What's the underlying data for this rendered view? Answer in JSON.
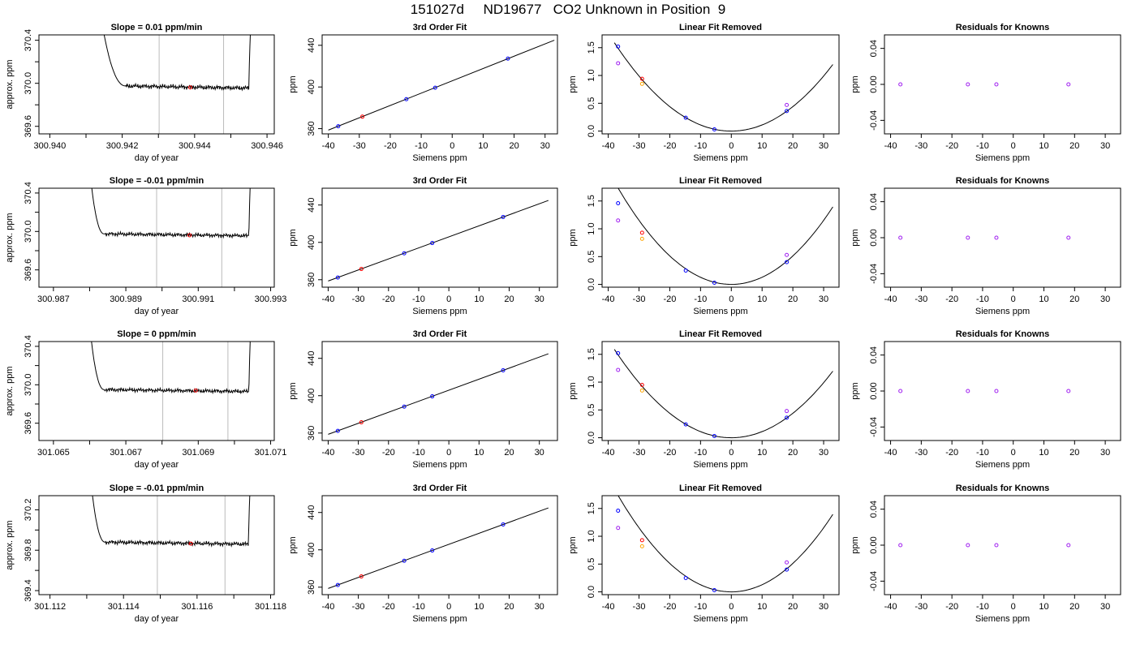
{
  "figure_title": "151027d     ND19677   CO2 Unknown in Position  9",
  "colors": {
    "trace": "#000000",
    "gridline": "#bbbbbb",
    "unknown_point": "#ff0000",
    "known_point": "#0000ff",
    "measured_point": "#a020f0",
    "secondary_point": "#ffa500",
    "fit_line": "#000000"
  },
  "chart_data": [
    {
      "type": "line",
      "title": "Slope =  0.01  ppm/min",
      "xlabel": "day of year",
      "ylabel": "approx. ppm",
      "xlim": [
        300.9397,
        300.9462
      ],
      "ylim": [
        369.53,
        370.45
      ],
      "xticks": [
        "300.940",
        "300.942",
        "300.944",
        "300.946"
      ],
      "xtick_values": [
        300.94,
        300.942,
        300.944,
        300.946
      ],
      "yticks": [
        "369.6",
        "370.0",
        "370.4"
      ],
      "ytick_values": [
        369.6,
        370.0,
        370.4
      ],
      "baseline": 369.975,
      "plateau_start": 300.9421,
      "plateau_end": 300.9455,
      "trace_start": 300.9411,
      "vlines": [
        300.94302,
        300.9448
      ],
      "unknown_point": {
        "x": 300.94388,
        "y": 369.962
      }
    },
    {
      "type": "line",
      "title": "3rd Order Fit",
      "xlabel": "Siemens ppm",
      "ylabel": "ppm",
      "xlim": [
        -42,
        34
      ],
      "ylim": [
        355,
        450
      ],
      "xticks": [
        "-40",
        "-30",
        "-20",
        "-10",
        "0",
        "10",
        "20",
        "30"
      ],
      "xtick_values": [
        -40,
        -30,
        -20,
        -10,
        0,
        10,
        20,
        30
      ],
      "yticks": [
        "360",
        "400",
        "440"
      ],
      "ytick_values": [
        360,
        400,
        440
      ],
      "fit_x": [
        -40,
        33
      ],
      "fit_y": [
        358.6,
        444.9
      ],
      "known_points": {
        "x": [
          -36.8,
          -14.8,
          -5.5,
          18.0
        ],
        "y": [
          362.3,
          388.3,
          399.3,
          427.2
        ]
      },
      "unknown_point": {
        "x": -29.0,
        "y": 371.5
      }
    },
    {
      "type": "line",
      "title": "Linear Fit Removed",
      "xlabel": "Siemens ppm",
      "ylabel": "ppm",
      "xlim": [
        -42,
        35
      ],
      "ylim": [
        -0.05,
        1.73
      ],
      "xticks": [
        "-40",
        "-30",
        "-20",
        "-10",
        "0",
        "10",
        "20",
        "30"
      ],
      "xtick_values": [
        -40,
        -30,
        -20,
        -10,
        0,
        10,
        20,
        30
      ],
      "yticks": [
        "0.0",
        "0.5",
        "1.0",
        "1.5"
      ],
      "ytick_values": [
        0,
        0.5,
        1.0,
        1.5
      ],
      "curve_coeffs": [
        0.0011,
        0.0
      ],
      "curve_xrange": [
        -38,
        33
      ],
      "known_points": {
        "x": [
          -36.8,
          -14.8,
          -5.5,
          18.0
        ],
        "y": [
          1.52,
          0.24,
          0.03,
          0.36
        ]
      },
      "measured_points": {
        "x": [
          -36.8,
          18.0
        ],
        "y": [
          1.22,
          0.47
        ]
      },
      "secondary_point": {
        "x": -29.0,
        "y": 0.85
      },
      "unknown_point": {
        "x": -29.0,
        "y": 0.94
      }
    },
    {
      "type": "scatter",
      "title": "Residuals for Knowns",
      "xlabel": "Siemens ppm",
      "ylabel": "ppm",
      "xlim": [
        -42,
        35
      ],
      "ylim": [
        -0.055,
        0.055
      ],
      "xticks": [
        "-40",
        "-30",
        "-20",
        "-10",
        "0",
        "10",
        "20",
        "30"
      ],
      "xtick_values": [
        -40,
        -30,
        -20,
        -10,
        0,
        10,
        20,
        30
      ],
      "yticks": [
        "-0.04",
        "0.00",
        "0.04"
      ],
      "ytick_values": [
        -0.04,
        0,
        0.04
      ],
      "points": {
        "x": [
          -36.8,
          -14.8,
          -5.5,
          18.0
        ],
        "y": [
          0,
          0,
          0,
          0
        ]
      }
    },
    {
      "type": "line",
      "title": "Slope =  -0.01  ppm/min",
      "xlabel": "day of year",
      "ylabel": "approx. ppm",
      "xlim": [
        300.9866,
        300.9931
      ],
      "ylim": [
        369.42,
        370.45
      ],
      "xticks": [
        "300.987",
        "300.989",
        "300.991",
        "300.993"
      ],
      "xtick_values": [
        300.987,
        300.989,
        300.991,
        300.993
      ],
      "yticks": [
        "369.6",
        "370.0",
        "370.4"
      ],
      "ytick_values": [
        369.6,
        370.0,
        370.4
      ],
      "baseline": 369.975,
      "plateau_start": 300.9884,
      "plateau_end": 300.9924,
      "trace_start": 300.9878,
      "vlines": [
        300.98985,
        300.99165
      ],
      "unknown_point": {
        "x": 300.99076,
        "y": 369.96
      }
    },
    {
      "type": "line",
      "title": "3rd Order Fit",
      "xlabel": "Siemens ppm",
      "ylabel": "ppm",
      "xlim": [
        -42,
        36
      ],
      "ylim": [
        352,
        458
      ],
      "xticks": [
        "-40",
        "-30",
        "-20",
        "-10",
        "0",
        "10",
        "20",
        "30"
      ],
      "xtick_values": [
        -40,
        -30,
        -20,
        -10,
        0,
        10,
        20,
        30
      ],
      "yticks": [
        "360",
        "400",
        "440"
      ],
      "ytick_values": [
        360,
        400,
        440
      ],
      "fit_x": [
        -40,
        33
      ],
      "fit_y": [
        358.6,
        444.9
      ],
      "known_points": {
        "x": [
          -36.8,
          -14.8,
          -5.5,
          18.0
        ],
        "y": [
          362.3,
          388.3,
          399.3,
          427.2
        ]
      },
      "unknown_point": {
        "x": -29.0,
        "y": 371.5
      }
    },
    {
      "type": "line",
      "title": "Linear Fit Removed",
      "xlabel": "Siemens ppm",
      "ylabel": "ppm",
      "xlim": [
        -42,
        35
      ],
      "ylim": [
        -0.05,
        1.73
      ],
      "xticks": [
        "-40",
        "-30",
        "-20",
        "-10",
        "0",
        "10",
        "20",
        "30"
      ],
      "xtick_values": [
        -40,
        -30,
        -20,
        -10,
        0,
        10,
        20,
        30
      ],
      "yticks": [
        "0.0",
        "0.5",
        "1.0",
        "1.5"
      ],
      "ytick_values": [
        0,
        0.5,
        1.0,
        1.5
      ],
      "curve_coeffs": [
        0.00128,
        0.0
      ],
      "curve_xrange": [
        -38,
        33
      ],
      "known_points": {
        "x": [
          -36.8,
          -14.8,
          -5.5,
          18.0
        ],
        "y": [
          1.46,
          0.25,
          0.03,
          0.4
        ]
      },
      "measured_points": {
        "x": [
          -36.8,
          18.0
        ],
        "y": [
          1.15,
          0.53
        ]
      },
      "secondary_point": {
        "x": -29.0,
        "y": 0.82
      },
      "unknown_point": {
        "x": -29.0,
        "y": 0.93
      }
    },
    {
      "type": "scatter",
      "title": "Residuals for Knowns",
      "xlabel": "Siemens ppm",
      "ylabel": "ppm",
      "xlim": [
        -42,
        35
      ],
      "ylim": [
        -0.055,
        0.055
      ],
      "xticks": [
        "-40",
        "-30",
        "-20",
        "-10",
        "0",
        "10",
        "20",
        "30"
      ],
      "xtick_values": [
        -40,
        -30,
        -20,
        -10,
        0,
        10,
        20,
        30
      ],
      "yticks": [
        "-0.04",
        "0.00",
        "0.04"
      ],
      "ytick_values": [
        -0.04,
        0,
        0.04
      ],
      "points": {
        "x": [
          -36.8,
          -14.8,
          -5.5,
          18.0
        ],
        "y": [
          0,
          0,
          0,
          0
        ]
      }
    },
    {
      "type": "line",
      "title": "Slope =  0  ppm/min",
      "xlabel": "day of year",
      "ylabel": "approx. ppm",
      "xlim": [
        301.0646,
        301.0711
      ],
      "ylim": [
        369.42,
        370.45
      ],
      "xticks": [
        "301.065",
        "301.067",
        "301.069",
        "301.071"
      ],
      "xtick_values": [
        301.065,
        301.067,
        301.069,
        301.071
      ],
      "yticks": [
        "369.6",
        "370.0",
        "370.4"
      ],
      "ytick_values": [
        369.6,
        370.0,
        370.4
      ],
      "baseline": 369.95,
      "plateau_start": 301.0664,
      "plateau_end": 301.0704,
      "trace_start": 301.0658,
      "vlines": [
        301.06802,
        301.06982
      ],
      "unknown_point": {
        "x": 301.06893,
        "y": 369.94
      }
    },
    {
      "type": "line",
      "title": "3rd Order Fit",
      "xlabel": "Siemens ppm",
      "ylabel": "ppm",
      "xlim": [
        -42,
        36
      ],
      "ylim": [
        352,
        458
      ],
      "xticks": [
        "-40",
        "-30",
        "-20",
        "-10",
        "0",
        "10",
        "20",
        "30"
      ],
      "xtick_values": [
        -40,
        -30,
        -20,
        -10,
        0,
        10,
        20,
        30
      ],
      "yticks": [
        "360",
        "400",
        "440"
      ],
      "ytick_values": [
        360,
        400,
        440
      ],
      "fit_x": [
        -40,
        33
      ],
      "fit_y": [
        358.6,
        444.9
      ],
      "known_points": {
        "x": [
          -36.8,
          -14.8,
          -5.5,
          18.0
        ],
        "y": [
          362.3,
          388.3,
          399.3,
          427.2
        ]
      },
      "unknown_point": {
        "x": -29.0,
        "y": 371.5
      }
    },
    {
      "type": "line",
      "title": "Linear Fit Removed",
      "xlabel": "Siemens ppm",
      "ylabel": "ppm",
      "xlim": [
        -42,
        35
      ],
      "ylim": [
        -0.05,
        1.73
      ],
      "xticks": [
        "-40",
        "-30",
        "-20",
        "-10",
        "0",
        "10",
        "20",
        "30"
      ],
      "xtick_values": [
        -40,
        -30,
        -20,
        -10,
        0,
        10,
        20,
        30
      ],
      "yticks": [
        "0.0",
        "0.5",
        "1.0",
        "1.5"
      ],
      "ytick_values": [
        0,
        0.5,
        1.0,
        1.5
      ],
      "curve_coeffs": [
        0.0011,
        0.0
      ],
      "curve_xrange": [
        -38,
        33
      ],
      "known_points": {
        "x": [
          -36.8,
          -14.8,
          -5.5,
          18.0
        ],
        "y": [
          1.52,
          0.24,
          0.03,
          0.36
        ]
      },
      "measured_points": {
        "x": [
          -36.8,
          18.0
        ],
        "y": [
          1.22,
          0.48
        ]
      },
      "secondary_point": {
        "x": -29.0,
        "y": 0.85
      },
      "unknown_point": {
        "x": -29.0,
        "y": 0.95
      }
    },
    {
      "type": "scatter",
      "title": "Residuals for Knowns",
      "xlabel": "Siemens ppm",
      "ylabel": "ppm",
      "xlim": [
        -42,
        35
      ],
      "ylim": [
        -0.055,
        0.055
      ],
      "xticks": [
        "-40",
        "-30",
        "-20",
        "-10",
        "0",
        "10",
        "20",
        "30"
      ],
      "xtick_values": [
        -40,
        -30,
        -20,
        -10,
        0,
        10,
        20,
        30
      ],
      "yticks": [
        "-0.04",
        "0.00",
        "0.04"
      ],
      "ytick_values": [
        -0.04,
        0,
        0.04
      ],
      "points": {
        "x": [
          -36.8,
          -14.8,
          -5.5,
          18.0
        ],
        "y": [
          0,
          0,
          0,
          0
        ]
      }
    },
    {
      "type": "line",
      "title": "Slope =  -0.01  ppm/min",
      "xlabel": "day of year",
      "ylabel": "approx. ppm",
      "xlim": [
        301.1117,
        301.1181
      ],
      "ylim": [
        369.36,
        370.34
      ],
      "xticks": [
        "301.112",
        "301.114",
        "301.116",
        "301.118"
      ],
      "xtick_values": [
        301.112,
        301.114,
        301.116,
        301.118
      ],
      "yticks": [
        "369.4",
        "369.8",
        "370.2"
      ],
      "ytick_values": [
        369.4,
        369.8,
        370.2
      ],
      "baseline": 369.88,
      "plateau_start": 301.1135,
      "plateau_end": 301.1174,
      "trace_start": 301.1129,
      "vlines": [
        301.11492,
        301.11676
      ],
      "unknown_point": {
        "x": 301.11583,
        "y": 369.865
      }
    },
    {
      "type": "line",
      "title": "3rd Order Fit",
      "xlabel": "Siemens ppm",
      "ylabel": "ppm",
      "xlim": [
        -42,
        36
      ],
      "ylim": [
        352,
        458
      ],
      "xticks": [
        "-40",
        "-30",
        "-20",
        "-10",
        "0",
        "10",
        "20",
        "30"
      ],
      "xtick_values": [
        -40,
        -30,
        -20,
        -10,
        0,
        10,
        20,
        30
      ],
      "yticks": [
        "360",
        "400",
        "440"
      ],
      "ytick_values": [
        360,
        400,
        440
      ],
      "fit_x": [
        -40,
        33
      ],
      "fit_y": [
        358.6,
        444.9
      ],
      "known_points": {
        "x": [
          -36.8,
          -14.8,
          -5.5,
          18.0
        ],
        "y": [
          362.3,
          388.3,
          399.3,
          427.2
        ]
      },
      "unknown_point": {
        "x": -29.0,
        "y": 371.5
      }
    },
    {
      "type": "line",
      "title": "Linear Fit Removed",
      "xlabel": "Siemens ppm",
      "ylabel": "ppm",
      "xlim": [
        -42,
        35
      ],
      "ylim": [
        -0.05,
        1.73
      ],
      "xticks": [
        "-40",
        "-30",
        "-20",
        "-10",
        "0",
        "10",
        "20",
        "30"
      ],
      "xtick_values": [
        -40,
        -30,
        -20,
        -10,
        0,
        10,
        20,
        30
      ],
      "yticks": [
        "0.0",
        "0.5",
        "1.0",
        "1.5"
      ],
      "ytick_values": [
        0,
        0.5,
        1.0,
        1.5
      ],
      "curve_coeffs": [
        0.00128,
        0.0
      ],
      "curve_xrange": [
        -38,
        33
      ],
      "known_points": {
        "x": [
          -36.8,
          -14.8,
          -5.5,
          18.0
        ],
        "y": [
          1.46,
          0.25,
          0.03,
          0.4
        ]
      },
      "measured_points": {
        "x": [
          -36.8,
          18.0
        ],
        "y": [
          1.15,
          0.53
        ]
      },
      "secondary_point": {
        "x": -29.0,
        "y": 0.82
      },
      "unknown_point": {
        "x": -29.0,
        "y": 0.93
      }
    },
    {
      "type": "scatter",
      "title": "Residuals for Knowns",
      "xlabel": "Siemens ppm",
      "ylabel": "ppm",
      "xlim": [
        -42,
        35
      ],
      "ylim": [
        -0.055,
        0.055
      ],
      "xticks": [
        "-40",
        "-30",
        "-20",
        "-10",
        "0",
        "10",
        "20",
        "30"
      ],
      "xtick_values": [
        -40,
        -30,
        -20,
        -10,
        0,
        10,
        20,
        30
      ],
      "yticks": [
        "-0.04",
        "0.00",
        "0.04"
      ],
      "ytick_values": [
        -0.04,
        0,
        0.04
      ],
      "points": {
        "x": [
          -36.8,
          -14.8,
          -5.5,
          18.0
        ],
        "y": [
          0,
          0,
          0,
          0
        ]
      }
    }
  ]
}
